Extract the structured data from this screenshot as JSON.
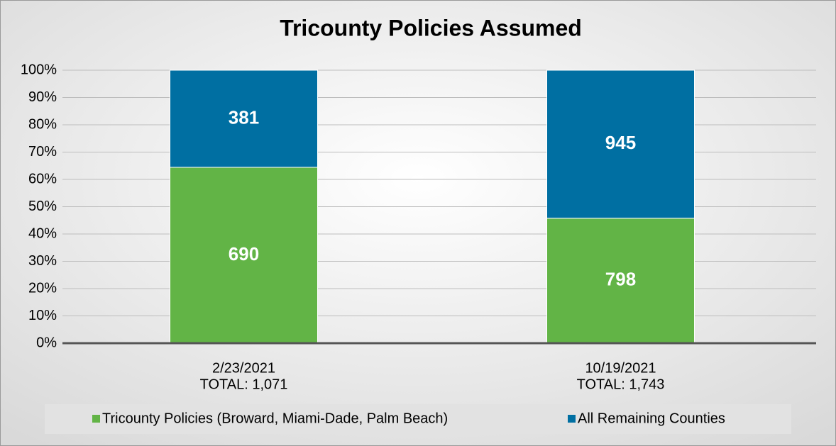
{
  "chart_data": {
    "type": "bar",
    "stacking": "percent",
    "title": "Tricounty Policies Assumed",
    "categories": [
      "2/23/2021",
      "10/19/2021"
    ],
    "category_sublabels": [
      "TOTAL: 1,071",
      "TOTAL: 1,743"
    ],
    "series": [
      {
        "name": "Tricounty Policies (Broward, Miami-Dade, Palm Beach)",
        "color": "#62b446",
        "values": [
          690,
          798
        ]
      },
      {
        "name": "All Remaining Counties",
        "color": "#006fa2",
        "values": [
          381,
          945
        ]
      }
    ],
    "ylim": [
      0,
      100
    ],
    "yticks": [
      {
        "value": 0,
        "label": "0%"
      },
      {
        "value": 10,
        "label": "10%"
      },
      {
        "value": 20,
        "label": "20%"
      },
      {
        "value": 30,
        "label": "30%"
      },
      {
        "value": 40,
        "label": "40%"
      },
      {
        "value": 50,
        "label": "50%"
      },
      {
        "value": 60,
        "label": "60%"
      },
      {
        "value": 70,
        "label": "70%"
      },
      {
        "value": 80,
        "label": "80%"
      },
      {
        "value": 90,
        "label": "90%"
      },
      {
        "value": 100,
        "label": "100%"
      }
    ],
    "grid": true,
    "legend": "bottom"
  }
}
